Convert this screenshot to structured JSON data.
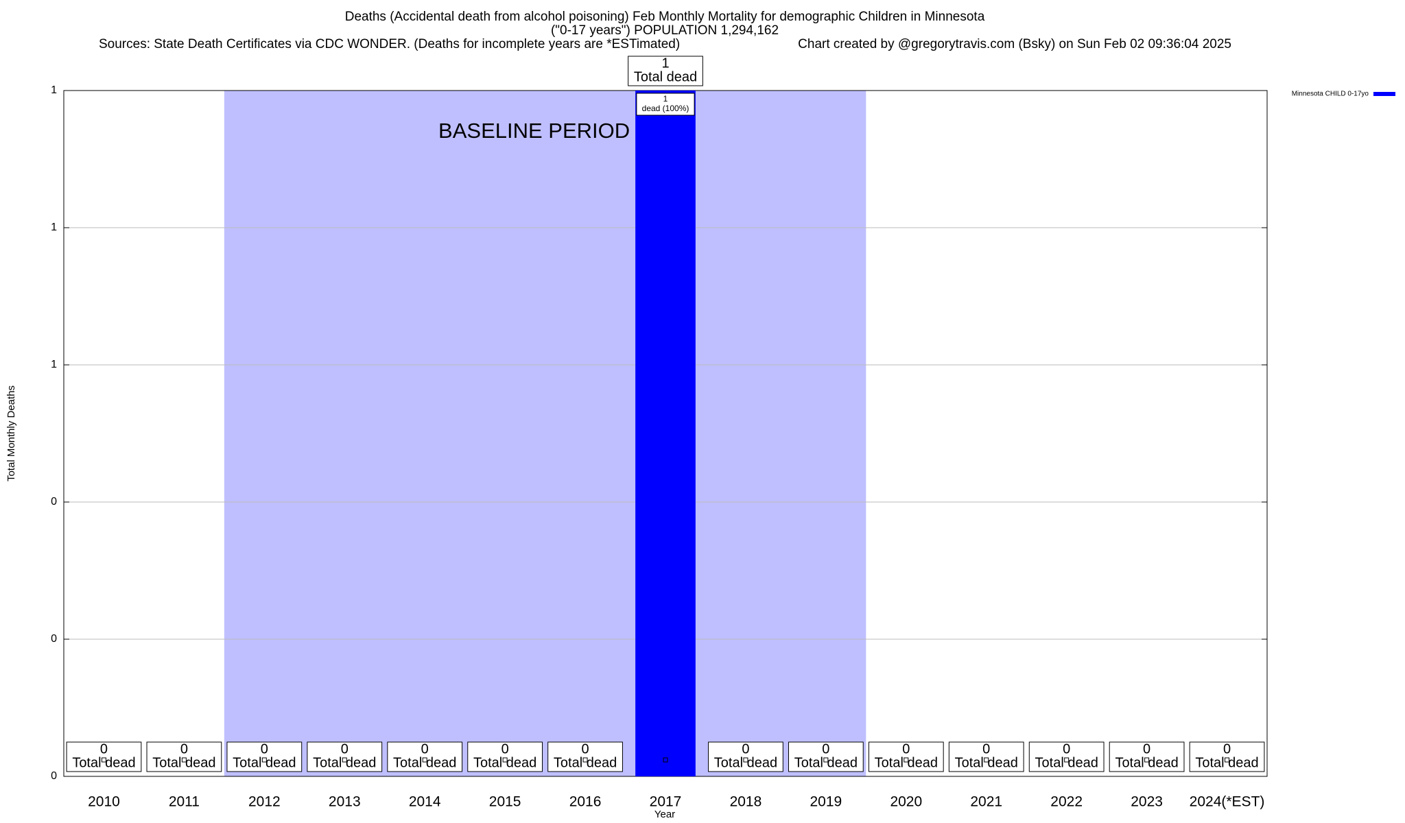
{
  "chart_data": {
    "type": "bar",
    "title": "Deaths (Accidental death from alcohol poisoning) Feb Monthly Mortality for demographic Children in Minnesota",
    "subtitle": "(\"0-17 years\") POPULATION 1,294,162",
    "source": "Sources: State Death Certificates via CDC WONDER. (Deaths for incomplete years are *ESTimated)",
    "credit": "Chart created by @gregorytravis.com (Bsky) on Sun Feb 02 09:36:04 2025",
    "x_label": "Year",
    "y_label": "Total Monthly Deaths",
    "categories": [
      "2010",
      "2011",
      "2012",
      "2013",
      "2014",
      "2015",
      "2016",
      "2017",
      "2018",
      "2019",
      "2020",
      "2021",
      "2022",
      "2023",
      "2024(*EST)"
    ],
    "series": [
      {
        "name": "Minnesota CHILD 0-17yo",
        "color": "#0000ff",
        "values": [
          0,
          0,
          0,
          0,
          0,
          0,
          0,
          1,
          0,
          0,
          0,
          0,
          0,
          0,
          0
        ]
      }
    ],
    "total_label": "Total dead",
    "inner_labels": [
      null,
      null,
      null,
      null,
      null,
      null,
      null,
      "dead (100%)",
      null,
      null,
      null,
      null,
      null,
      null,
      null
    ],
    "baseline": {
      "label": "BASELINE PERIOD",
      "start": "2012",
      "end": "2019",
      "color": "#bfbfff"
    },
    "ylim": [
      0,
      1
    ],
    "yticks": [
      0,
      {
        "value": 0.2,
        "label": "0"
      },
      {
        "value": 0.4,
        "label": "0"
      },
      {
        "value": 0.6,
        "label": "1"
      },
      {
        "value": 0.8,
        "label": "1"
      },
      1
    ],
    "grid": true,
    "legend": "top-right"
  }
}
